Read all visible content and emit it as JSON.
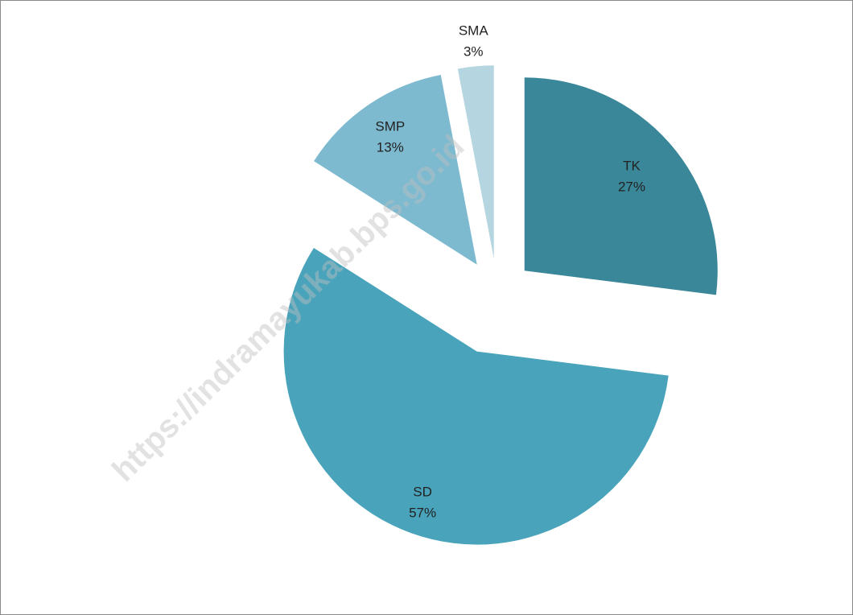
{
  "chart_data": {
    "type": "pie",
    "categories": [
      "TK",
      "SD",
      "SMP",
      "SMA"
    ],
    "values": [
      27,
      57,
      13,
      3
    ],
    "value_labels": [
      "27%",
      "57%",
      "13%",
      "3%"
    ],
    "colors": [
      "#3a8799",
      "#48a3bb",
      "#7dbad0",
      "#b5d6e1"
    ],
    "watermark": "https://indramayukab.bps.go.id"
  }
}
